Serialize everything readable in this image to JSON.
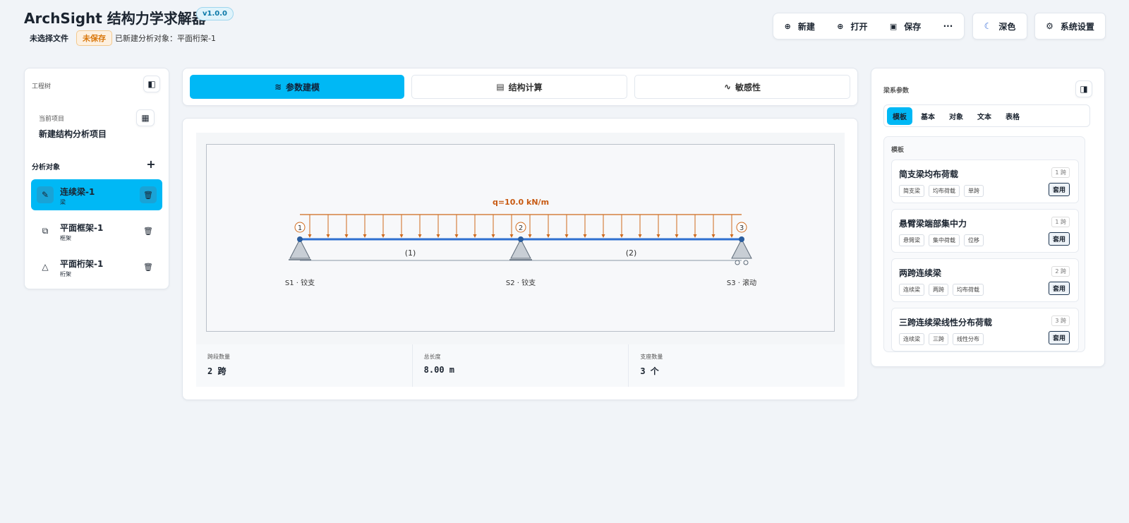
{
  "header": {
    "title": "ArchSight 结构力学求解器",
    "version": "v1.0.0",
    "file_status": "未选择文件",
    "save_status": "未保存",
    "message": "已新建分析对象：平面桁架-1"
  },
  "toolbar": {
    "buttons": [
      "新建",
      "打开",
      "保存",
      "···"
    ],
    "theme": "深色",
    "settings": "系统设置"
  },
  "left_panel": {
    "title": "工程树",
    "current_project_label": "当前项目",
    "current_project": "新建结构分析项目",
    "objects_label": "分析对象",
    "objects": [
      {
        "name": "连续梁-1",
        "type": "梁"
      },
      {
        "name": "平面框架-1",
        "type": "框架"
      },
      {
        "name": "平面桁架-1",
        "type": "桁架"
      }
    ]
  },
  "tabs": [
    "参数建模",
    "结构计算",
    "敏感性"
  ],
  "diagram": {
    "load_label": "q=10.0 kN/m",
    "nodes": [
      "1",
      "2",
      "3"
    ],
    "spans": [
      "(1)",
      "(2)"
    ],
    "supports": [
      "S1 · 铰支",
      "S2 · 铰支",
      "S3 · 滚动"
    ]
  },
  "stats": [
    {
      "label": "跨段数量",
      "value": "2 跨"
    },
    {
      "label": "总长度",
      "value": "8.00 m"
    },
    {
      "label": "支座数量",
      "value": "3 个"
    }
  ],
  "right_panel": {
    "title": "梁系参数",
    "tabs": [
      "模板",
      "基本",
      "对象",
      "文本",
      "表格"
    ],
    "section": "模板",
    "templates": [
      {
        "name": "简支梁均布荷载",
        "spans": "1 跨",
        "tags": [
          "简支梁",
          "均布荷载",
          "单跨"
        ],
        "action": "套用"
      },
      {
        "name": "悬臂梁端部集中力",
        "spans": "1 跨",
        "tags": [
          "悬臂梁",
          "集中荷载",
          "位移"
        ],
        "action": "套用"
      },
      {
        "name": "两跨连续梁",
        "spans": "2 跨",
        "tags": [
          "连续梁",
          "两跨",
          "均布荷载"
        ],
        "action": "套用"
      },
      {
        "name": "三跨连续梁线性分布荷载",
        "spans": "3 跨",
        "tags": [
          "连续梁",
          "三跨",
          "线性分布"
        ],
        "action": "套用"
      }
    ]
  }
}
